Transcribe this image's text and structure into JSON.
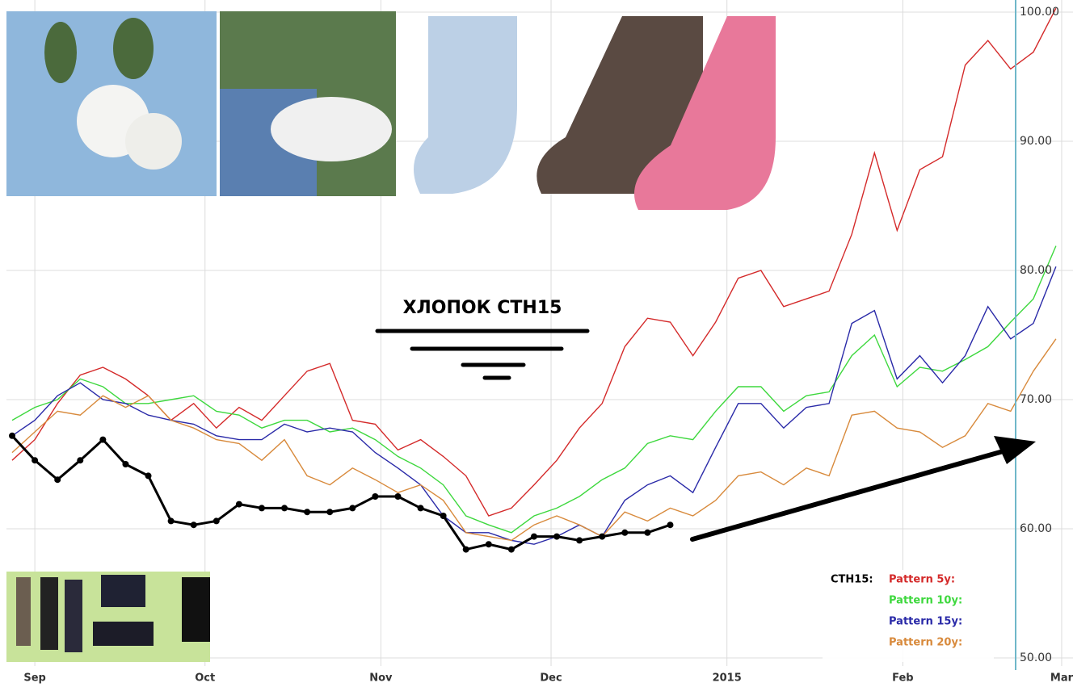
{
  "chart_data": {
    "type": "line",
    "annotation": "ХЛОПОК  CTH15",
    "x": [
      -4,
      0,
      4,
      8,
      12,
      16,
      20,
      24,
      28,
      32,
      36,
      40,
      44,
      48,
      52,
      56,
      60,
      64,
      68,
      72,
      76,
      80,
      84,
      88,
      92,
      96,
      100,
      104,
      108,
      112,
      116,
      120,
      124,
      128,
      132,
      136,
      140,
      144,
      148,
      152,
      156,
      160,
      164,
      168,
      172,
      176,
      180
    ],
    "xlim": [
      -5,
      183
    ],
    "xticks": [
      {
        "value": 0,
        "label": "Sep"
      },
      {
        "value": 30,
        "label": "Oct"
      },
      {
        "value": 61,
        "label": "Nov"
      },
      {
        "value": 91,
        "label": "Dec"
      },
      {
        "value": 122,
        "label": "2015"
      },
      {
        "value": 153,
        "label": "Feb"
      },
      {
        "value": 181,
        "label": "Mar"
      }
    ],
    "ylim": [
      50,
      100
    ],
    "yticks": [
      {
        "value": 50,
        "label": "50.00"
      },
      {
        "value": 60,
        "label": "60.00"
      },
      {
        "value": 70,
        "label": "70.00"
      },
      {
        "value": 80,
        "label": "80.00"
      },
      {
        "value": 90,
        "label": "90.00"
      },
      {
        "value": 100,
        "label": "100.00"
      }
    ],
    "grid": true,
    "series": [
      {
        "name": "Pattern 5y:",
        "color": "#d42a2a",
        "values": [
          65.3,
          66.9,
          69.7,
          71.9,
          72.5,
          71.6,
          70.3,
          68.4,
          69.7,
          67.8,
          69.4,
          68.4,
          70.3,
          72.2,
          72.8,
          68.4,
          68.1,
          66.1,
          66.9,
          65.6,
          64.1,
          61.0,
          61.6,
          63.4,
          65.3,
          67.8,
          69.7,
          74.1,
          76.3,
          76.0,
          73.4,
          76.0,
          79.4,
          80.0,
          77.2,
          77.8,
          78.4,
          82.8,
          89.1,
          83.1,
          87.8,
          88.8,
          95.9,
          97.8,
          95.6,
          96.9,
          100.3
        ]
      },
      {
        "name": "Pattern 10y:",
        "color": "#3ed83e",
        "values": [
          68.4,
          69.4,
          70.0,
          71.6,
          71.0,
          69.7,
          69.7,
          70.0,
          70.3,
          69.1,
          68.8,
          67.8,
          68.4,
          68.4,
          67.5,
          67.8,
          66.9,
          65.6,
          64.7,
          63.4,
          61.0,
          60.3,
          59.7,
          61.0,
          61.6,
          62.5,
          63.8,
          64.7,
          66.6,
          67.2,
          66.9,
          69.1,
          71.0,
          71.0,
          69.1,
          70.3,
          70.6,
          73.4,
          75.0,
          71.0,
          72.5,
          72.2,
          73.1,
          74.1,
          76.0,
          77.8,
          81.9
        ]
      },
      {
        "name": "Pattern 15y:",
        "color": "#2a2aa8",
        "values": [
          67.2,
          68.4,
          70.3,
          71.3,
          70.0,
          69.7,
          68.8,
          68.4,
          68.1,
          67.2,
          66.9,
          66.9,
          68.1,
          67.5,
          67.8,
          67.5,
          65.9,
          64.7,
          63.4,
          61.0,
          59.7,
          59.7,
          59.1,
          58.8,
          59.4,
          60.3,
          59.4,
          62.2,
          63.4,
          64.1,
          62.8,
          66.3,
          69.7,
          69.7,
          67.8,
          69.4,
          69.7,
          75.9,
          76.9,
          71.6,
          73.4,
          71.3,
          73.4,
          77.2,
          74.7,
          75.9,
          80.3
        ]
      },
      {
        "name": "Pattern 20y:",
        "color": "#d88a3c",
        "values": [
          65.9,
          67.5,
          69.1,
          68.8,
          70.3,
          69.4,
          70.3,
          68.4,
          67.8,
          66.9,
          66.6,
          65.3,
          66.9,
          64.1,
          63.4,
          64.7,
          63.8,
          62.8,
          63.4,
          62.2,
          59.7,
          59.4,
          59.1,
          60.3,
          61.0,
          60.3,
          59.4,
          61.3,
          60.6,
          61.6,
          61.0,
          62.2,
          64.1,
          64.4,
          63.4,
          64.7,
          64.1,
          68.8,
          69.1,
          67.8,
          67.5,
          66.3,
          67.2,
          69.7,
          69.1,
          72.2,
          74.7
        ]
      },
      {
        "name": "CTH15:",
        "color": "#000000",
        "markers": true,
        "values": [
          67.2,
          65.3,
          63.8,
          65.3,
          66.9,
          65.0,
          64.1,
          60.6,
          60.3,
          60.6,
          61.9,
          61.6,
          61.6,
          61.3,
          61.3,
          61.6,
          62.5,
          62.5,
          61.6,
          61.0,
          58.4,
          58.8,
          58.4,
          59.4,
          59.4,
          59.1,
          59.4,
          59.7,
          59.7,
          60.3,
          null,
          null,
          null,
          null,
          null,
          null,
          null,
          null,
          null,
          null,
          null,
          null,
          null,
          null,
          null,
          null,
          null
        ]
      }
    ]
  }
}
